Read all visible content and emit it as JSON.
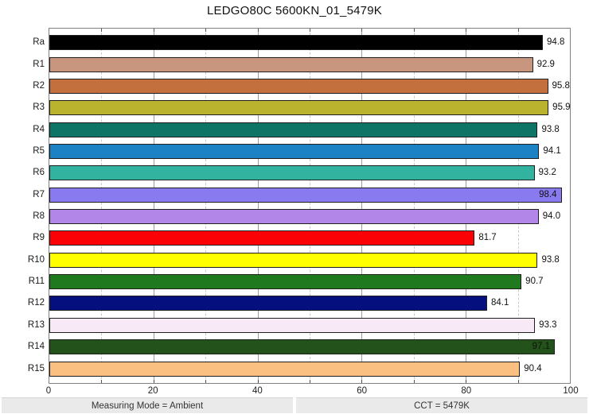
{
  "title": "LEDGO80C 5600KN_01_5479K",
  "chart_data": {
    "type": "bar",
    "orientation": "horizontal",
    "title": "LEDGO80C 5600KN_01_5479K",
    "xlabel": "",
    "ylabel": "",
    "xlim": [
      0,
      100
    ],
    "x_tick_labels": [
      "0",
      "20",
      "40",
      "60",
      "80",
      "100"
    ],
    "x_tick_values": [
      0,
      20,
      40,
      60,
      80,
      100
    ],
    "grid_minor_values": [
      10,
      30,
      50,
      70,
      90
    ],
    "grid_major_values": [
      20,
      40,
      60,
      80
    ],
    "legend": "none",
    "categories": [
      "Ra",
      "R1",
      "R2",
      "R3",
      "R4",
      "R5",
      "R6",
      "R7",
      "R8",
      "R9",
      "R10",
      "R11",
      "R12",
      "R13",
      "R14",
      "R15"
    ],
    "values": [
      94.8,
      92.9,
      95.8,
      95.9,
      93.8,
      94.1,
      93.2,
      98.4,
      94.0,
      81.7,
      93.8,
      90.7,
      84.1,
      93.3,
      97.1,
      90.4
    ],
    "value_labels": [
      "94.8",
      "92.9",
      "95.8",
      "95.9",
      "93.8",
      "94.1",
      "93.2",
      "98.4",
      "94.0",
      "81.7",
      "93.8",
      "90.7",
      "84.1",
      "93.3",
      "97.1",
      "90.4"
    ],
    "value_label_inside": [
      false,
      false,
      false,
      false,
      false,
      false,
      false,
      true,
      false,
      false,
      false,
      false,
      false,
      false,
      true,
      false
    ],
    "bar_colors": [
      "#000000",
      "#c8957e",
      "#c36f3e",
      "#b9b32e",
      "#0e7466",
      "#1c82c3",
      "#31b3a0",
      "#8a7aef",
      "#b286e9",
      "#fb0005",
      "#ffff00",
      "#1f7a1f",
      "#05107e",
      "#f8e9f6",
      "#23521a",
      "#f9c082"
    ],
    "bar_border_color": "#1f1f1f"
  },
  "footer": {
    "left": "Measuring Mode = Ambient",
    "right": "CCT = 5479K"
  }
}
